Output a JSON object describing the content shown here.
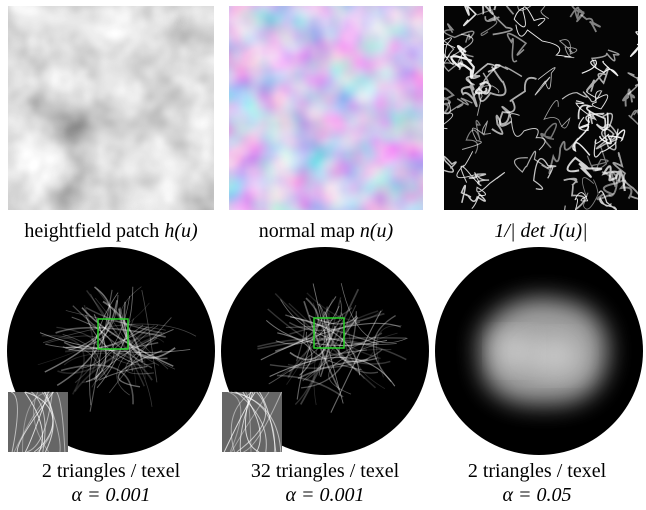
{
  "top_row": [
    {
      "id": "heightfield",
      "caption_text": "heightfield patch ",
      "caption_math": "h(u)"
    },
    {
      "id": "normal",
      "caption_text": "normal map ",
      "caption_math": "n(u)"
    },
    {
      "id": "jacobian",
      "caption_text": "",
      "caption_math": "1/| det J(u)|"
    }
  ],
  "bottom_row": [
    {
      "id": "render-2tri",
      "line1": "2 triangles / texel",
      "line2": "α = 0.001",
      "has_inset": true
    },
    {
      "id": "render-32tri",
      "line1": "32 triangles / texel",
      "line2": "α = 0.001",
      "has_inset": true
    },
    {
      "id": "render-blur",
      "line1": "2 triangles / texel",
      "line2": "α = 0.05",
      "has_inset": false
    }
  ],
  "colors": {
    "highlight_box": "#2bd32b",
    "background": "#000000"
  }
}
